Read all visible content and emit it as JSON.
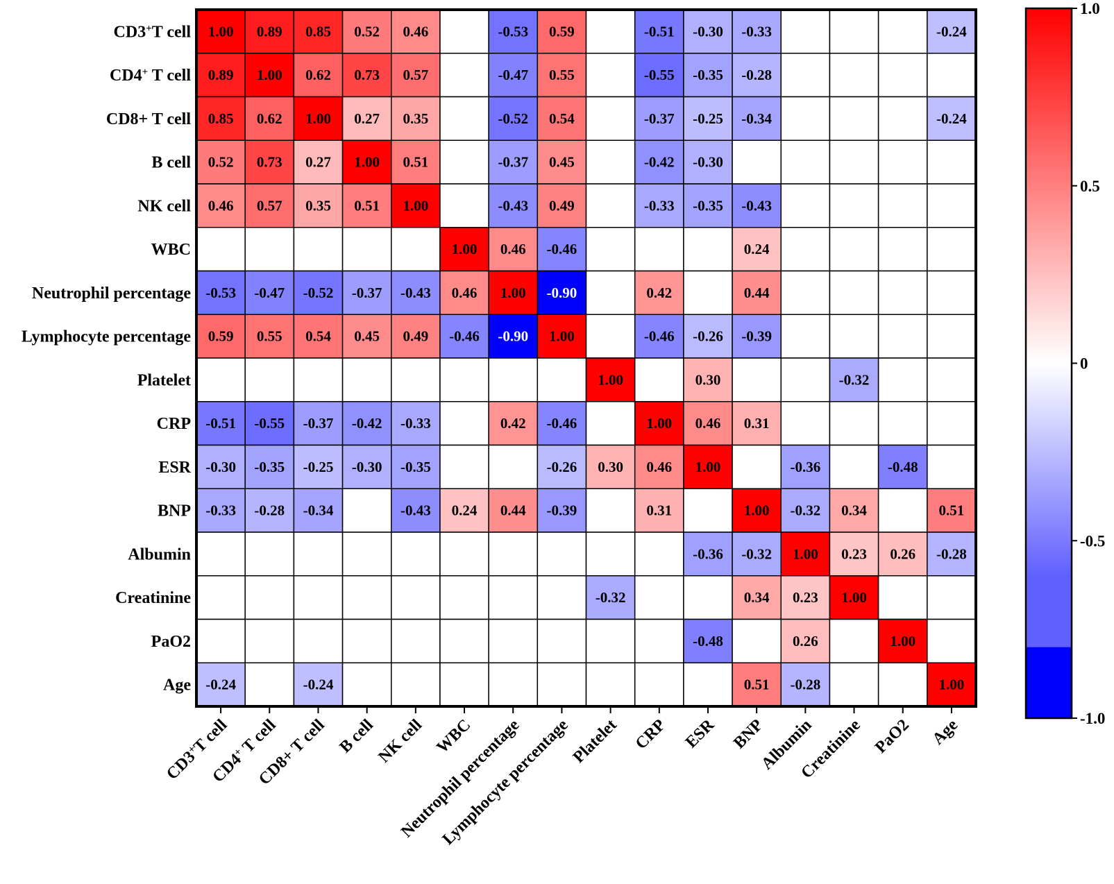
{
  "chart_data": {
    "type": "heatmap",
    "title": "",
    "labels": [
      {
        "main": "CD3",
        "sup": "+",
        "rest": "T cell",
        "full": "CD3+T cell"
      },
      {
        "main": "CD4",
        "sup": "+",
        "rest": " T cell",
        "full": "CD4+ T cell"
      },
      {
        "main": "CD8+ T cell",
        "sup": "",
        "rest": "",
        "full": "CD8+ T cell"
      },
      {
        "main": "B cell",
        "sup": "",
        "rest": "",
        "full": "B cell"
      },
      {
        "main": "NK cell",
        "sup": "",
        "rest": "",
        "full": "NK cell"
      },
      {
        "main": "WBC",
        "sup": "",
        "rest": "",
        "full": "WBC"
      },
      {
        "main": "Neutrophil percentage",
        "sup": "",
        "rest": "",
        "full": "Neutrophil percentage"
      },
      {
        "main": "Lymphocyte percentage",
        "sup": "",
        "rest": "",
        "full": "Lymphocyte percentage"
      },
      {
        "main": "Platelet",
        "sup": "",
        "rest": "",
        "full": "Platelet"
      },
      {
        "main": "CRP",
        "sup": "",
        "rest": "",
        "full": "CRP"
      },
      {
        "main": "ESR",
        "sup": "",
        "rest": "",
        "full": "ESR"
      },
      {
        "main": "BNP",
        "sup": "",
        "rest": "",
        "full": "BNP"
      },
      {
        "main": "Albumin",
        "sup": "",
        "rest": "",
        "full": "Albumin"
      },
      {
        "main": "Creatinine",
        "sup": "",
        "rest": "",
        "full": "Creatinine"
      },
      {
        "main": "PaO2",
        "sup": "",
        "rest": "",
        "full": "PaO2"
      },
      {
        "main": "Age",
        "sup": "",
        "rest": "",
        "full": "Age"
      }
    ],
    "matrix": [
      [
        1.0,
        0.89,
        0.85,
        0.52,
        0.46,
        null,
        -0.53,
        0.59,
        null,
        -0.51,
        -0.3,
        -0.33,
        null,
        null,
        null,
        -0.24
      ],
      [
        0.89,
        1.0,
        0.62,
        0.73,
        0.57,
        null,
        -0.47,
        0.55,
        null,
        -0.55,
        -0.35,
        -0.28,
        null,
        null,
        null,
        null
      ],
      [
        0.85,
        0.62,
        1.0,
        0.27,
        0.35,
        null,
        -0.52,
        0.54,
        null,
        -0.37,
        -0.25,
        -0.34,
        null,
        null,
        null,
        -0.24
      ],
      [
        0.52,
        0.73,
        0.27,
        1.0,
        0.51,
        null,
        -0.37,
        0.45,
        null,
        -0.42,
        -0.3,
        null,
        null,
        null,
        null,
        null
      ],
      [
        0.46,
        0.57,
        0.35,
        0.51,
        1.0,
        null,
        -0.43,
        0.49,
        null,
        -0.33,
        -0.35,
        -0.43,
        null,
        null,
        null,
        null
      ],
      [
        null,
        null,
        null,
        null,
        null,
        1.0,
        0.46,
        -0.46,
        null,
        null,
        null,
        0.24,
        null,
        null,
        null,
        null
      ],
      [
        -0.53,
        -0.47,
        -0.52,
        -0.37,
        -0.43,
        0.46,
        1.0,
        -0.9,
        null,
        0.42,
        null,
        0.44,
        null,
        null,
        null,
        null
      ],
      [
        0.59,
        0.55,
        0.54,
        0.45,
        0.49,
        -0.46,
        -0.9,
        1.0,
        null,
        -0.46,
        -0.26,
        -0.39,
        null,
        null,
        null,
        null
      ],
      [
        null,
        null,
        null,
        null,
        null,
        null,
        null,
        null,
        1.0,
        null,
        0.3,
        null,
        null,
        -0.32,
        null,
        null
      ],
      [
        -0.51,
        -0.55,
        -0.37,
        -0.42,
        -0.33,
        null,
        0.42,
        -0.46,
        null,
        1.0,
        0.46,
        0.31,
        null,
        null,
        null,
        null
      ],
      [
        -0.3,
        -0.35,
        -0.25,
        -0.3,
        -0.35,
        null,
        null,
        -0.26,
        0.3,
        0.46,
        1.0,
        null,
        -0.36,
        null,
        -0.48,
        null
      ],
      [
        -0.33,
        -0.28,
        -0.34,
        null,
        -0.43,
        0.24,
        0.44,
        -0.39,
        null,
        0.31,
        null,
        1.0,
        -0.32,
        0.34,
        null,
        0.51
      ],
      [
        null,
        null,
        null,
        null,
        null,
        null,
        null,
        null,
        null,
        null,
        -0.36,
        -0.32,
        1.0,
        0.23,
        0.26,
        -0.28
      ],
      [
        null,
        null,
        null,
        null,
        null,
        null,
        null,
        null,
        -0.32,
        null,
        null,
        0.34,
        0.23,
        1.0,
        null,
        null
      ],
      [
        null,
        null,
        null,
        null,
        null,
        null,
        null,
        null,
        null,
        null,
        -0.48,
        null,
        0.26,
        null,
        1.0,
        null
      ],
      [
        -0.24,
        null,
        -0.24,
        null,
        null,
        null,
        null,
        null,
        null,
        null,
        null,
        0.51,
        -0.28,
        null,
        null,
        1.0
      ]
    ],
    "value_range": [
      -1.0,
      1.0
    ],
    "colorbar": {
      "ticks": [
        1.0,
        0.5,
        0,
        -0.5,
        -1.0
      ],
      "tick_labels": [
        "1.0",
        "0.5",
        "0",
        "-0.5",
        "-1.0"
      ],
      "colors": {
        "positive": "#ff0000",
        "zero": "#ffffff",
        "negative": "#0000ff"
      }
    },
    "legend": "right",
    "grid": true
  }
}
